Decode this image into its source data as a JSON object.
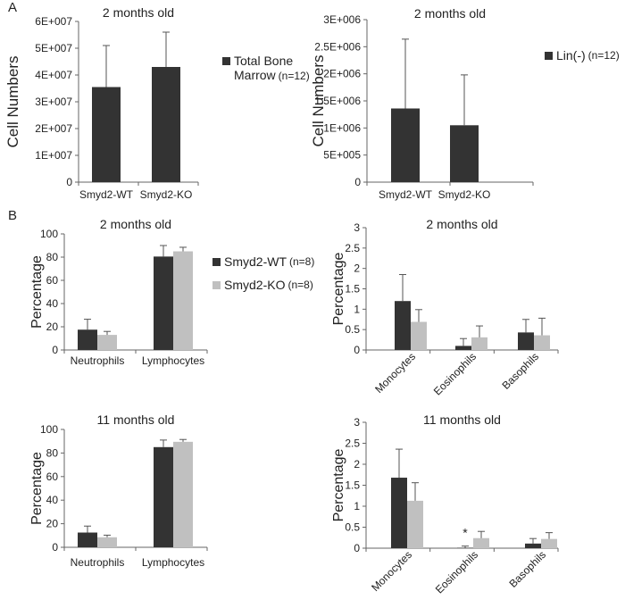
{
  "panel_labels": {
    "a": "A",
    "b": "B"
  },
  "colors": {
    "wt": "#333333",
    "ko": "#c0c0c0",
    "axis": "#666666"
  },
  "legends": {
    "total_bm": {
      "line1": "Total Bone",
      "line2": "Marrow",
      "n": "(n=12)",
      "color": "#333333"
    },
    "lin": {
      "label": "Lin(-)",
      "n": "(n=12)",
      "color": "#333333"
    },
    "wt": {
      "label": "Smyd2-WT",
      "n": "(n=8)",
      "color": "#333333"
    },
    "ko": {
      "label": "Smyd2-KO",
      "n": "(n=8)",
      "color": "#c0c0c0"
    }
  },
  "chart_data": [
    {
      "type": "bar",
      "title": "2 months old",
      "ylabel": "Cell Numbers",
      "categories": [
        "Smyd2-WT",
        "Smyd2-KO"
      ],
      "ylim": [
        0,
        60000000
      ],
      "yticks": [
        0,
        10000000,
        20000000,
        30000000,
        40000000,
        50000000,
        60000000
      ],
      "ytick_labels": [
        "0",
        "1E+007",
        "2E+007",
        "3E+007",
        "4E+007",
        "5E+007",
        "6E+007"
      ],
      "series": [
        {
          "name": "Total Bone Marrow",
          "values": [
            35500000,
            43000000
          ],
          "errors": [
            15500000,
            13000000
          ]
        }
      ]
    },
    {
      "type": "bar",
      "title": "2 months old",
      "ylabel": "Cell Numbers",
      "categories": [
        "Smyd2-WT",
        "Smyd2-KO"
      ],
      "ylim": [
        0,
        3000000
      ],
      "yticks": [
        0,
        500000,
        1000000,
        1500000,
        2000000,
        2500000,
        3000000
      ],
      "ytick_labels": [
        "0",
        "5E+005",
        "1E+006",
        "1.5E+006",
        "2E+006",
        "2.5E+006",
        "3E+006"
      ],
      "series": [
        {
          "name": "Lin(-)",
          "values": [
            1360000,
            1050000
          ],
          "errors": [
            1280000,
            930000
          ]
        }
      ]
    },
    {
      "type": "bar",
      "title": "2 months old",
      "ylabel": "Percentage",
      "categories": [
        "Neutrophils",
        "Lymphocytes"
      ],
      "ylim": [
        0,
        100
      ],
      "yticks": [
        0,
        20,
        40,
        60,
        80,
        100
      ],
      "ytick_labels": [
        "0",
        "20",
        "40",
        "60",
        "80",
        "100"
      ],
      "series": [
        {
          "name": "Smyd2-WT",
          "values": [
            17.5,
            80.5
          ],
          "errors": [
            9,
            9.5
          ]
        },
        {
          "name": "Smyd2-KO",
          "values": [
            13,
            85
          ],
          "errors": [
            3,
            3.5
          ]
        }
      ]
    },
    {
      "type": "bar",
      "title": "2 months old",
      "ylabel": "Percentage",
      "categories": [
        "Monocytes",
        "Eosinophils",
        "Basophils"
      ],
      "ylim": [
        0,
        3
      ],
      "yticks": [
        0,
        0.5,
        1,
        1.5,
        2,
        2.5,
        3
      ],
      "ytick_labels": [
        "0",
        "0.5",
        "1",
        "1.5",
        "2",
        "2.5",
        "3"
      ],
      "series": [
        {
          "name": "Smyd2-WT",
          "values": [
            1.2,
            0.1,
            0.43
          ],
          "errors": [
            0.65,
            0.18,
            0.32
          ]
        },
        {
          "name": "Smyd2-KO",
          "values": [
            0.69,
            0.31,
            0.36
          ],
          "errors": [
            0.3,
            0.28,
            0.42
          ]
        }
      ]
    },
    {
      "type": "bar",
      "title": "11 months old",
      "ylabel": "Percentage",
      "categories": [
        "Neutrophils",
        "Lymphocytes"
      ],
      "ylim": [
        0,
        100
      ],
      "yticks": [
        0,
        20,
        40,
        60,
        80,
        100
      ],
      "ytick_labels": [
        "0",
        "20",
        "40",
        "60",
        "80",
        "100"
      ],
      "series": [
        {
          "name": "Smyd2-WT",
          "values": [
            12.5,
            85
          ],
          "errors": [
            5.5,
            6
          ]
        },
        {
          "name": "Smyd2-KO",
          "values": [
            8.5,
            89.5
          ],
          "errors": [
            1.8,
            2
          ]
        }
      ]
    },
    {
      "type": "bar",
      "title": "11 months old",
      "ylabel": "Percentage",
      "categories": [
        "Monocytes",
        "Eosinophils",
        "Basophils"
      ],
      "ylim": [
        0,
        3
      ],
      "yticks": [
        0,
        0.5,
        1,
        1.5,
        2,
        2.5,
        3
      ],
      "ytick_labels": [
        "0",
        "0.5",
        "1",
        "1.5",
        "2",
        "2.5",
        "3"
      ],
      "annotation": "*",
      "series": [
        {
          "name": "Smyd2-WT",
          "values": [
            1.68,
            0.01,
            0.11
          ],
          "errors": [
            0.68,
            0.04,
            0.12
          ]
        },
        {
          "name": "Smyd2-KO",
          "values": [
            1.13,
            0.24,
            0.22
          ],
          "errors": [
            0.43,
            0.16,
            0.15
          ]
        }
      ]
    }
  ]
}
